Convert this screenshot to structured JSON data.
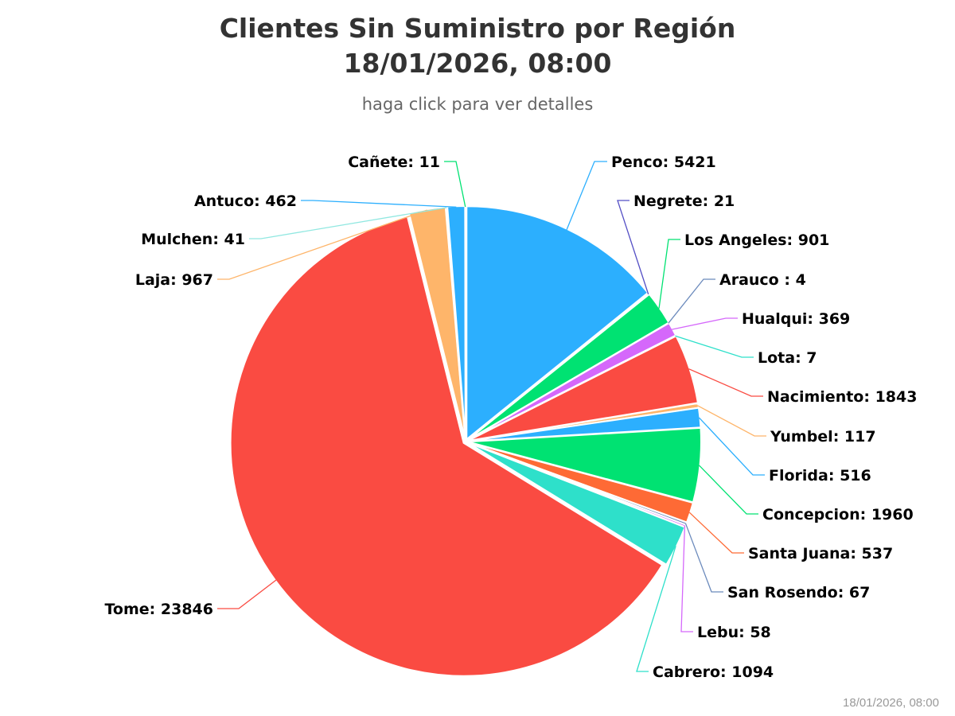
{
  "chart_data": {
    "type": "pie",
    "title_line1": "Clientes Sin Suministro por Región",
    "title_line2": "18/01/2026, 08:00",
    "subtitle": "haga click para ver detalles",
    "credits": "18/01/2026, 08:00",
    "data_label_format": "{name}: {value}",
    "slices": [
      {
        "name": "Penco",
        "label": "Penco",
        "value": 5421,
        "color": "#2caffe"
      },
      {
        "name": "Negrete",
        "label": "Negrete",
        "value": 21,
        "color": "#544fc5"
      },
      {
        "name": "Los Angeles",
        "label": "Los Angeles",
        "value": 901,
        "color": "#00e272"
      },
      {
        "name": "Arauco",
        "label": "Arauco ",
        "value": 4,
        "color": "#6b8abc"
      },
      {
        "name": "Hualqui",
        "label": "Hualqui",
        "value": 369,
        "color": "#d568fb"
      },
      {
        "name": "Lota",
        "label": "Lota",
        "value": 7,
        "color": "#2ee0ca"
      },
      {
        "name": "Nacimiento",
        "label": "Nacimiento",
        "value": 1843,
        "color": "#fa4b42"
      },
      {
        "name": "Yumbel",
        "label": "Yumbel",
        "value": 117,
        "color": "#feb56a"
      },
      {
        "name": "Florida",
        "label": "Florida",
        "value": 516,
        "color": "#2caffe"
      },
      {
        "name": "Concepcion",
        "label": "Concepcion",
        "value": 1960,
        "color": "#00e272"
      },
      {
        "name": "Santa Juana",
        "label": "Santa Juana",
        "value": 537,
        "color": "#fe6a35"
      },
      {
        "name": "San Rosendo",
        "label": "San Rosendo",
        "value": 67,
        "color": "#6b8abc"
      },
      {
        "name": "Lebu",
        "label": "Lebu",
        "value": 58,
        "color": "#d568fb"
      },
      {
        "name": "Cabrero",
        "label": "Cabrero",
        "value": 1094,
        "color": "#2ee0ca"
      },
      {
        "name": "Tome",
        "label": "Tome",
        "value": 23846,
        "color": "#fa4b42"
      },
      {
        "name": "Laja",
        "label": "Laja",
        "value": 967,
        "color": "#feb56a"
      },
      {
        "name": "Mulchen",
        "label": "Mulchen",
        "value": 41,
        "color": "#91e8e1"
      },
      {
        "name": "Antuco",
        "label": "Antuco",
        "value": 462,
        "color": "#2caffe"
      },
      {
        "name": "Cañete",
        "label": "Cañete",
        "value": 11,
        "color": "#00e272"
      }
    ]
  }
}
